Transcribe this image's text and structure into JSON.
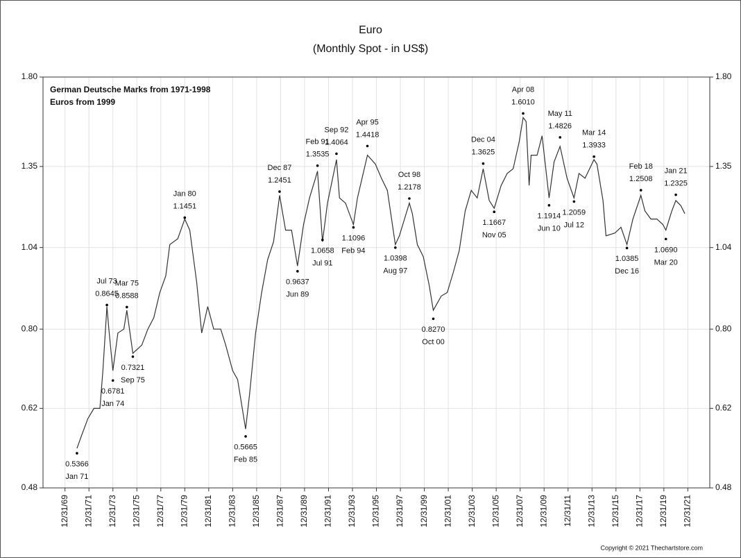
{
  "chart_data": {
    "type": "line",
    "title": "Euro",
    "subtitle": "(Monthly Spot - in US$)",
    "notes": [
      "German Deutsche Marks from 1971-1998",
      "Euros from 1999"
    ],
    "copyright": "Copyright © 2021 Thechartstore.com",
    "log_scale": true,
    "grid": true,
    "color": "#333333",
    "ylim": [
      0.48,
      1.8
    ],
    "yticks": [
      0.48,
      0.62,
      {
        "value": 0.8,
        "label": "0.80"
      },
      1.04,
      1.35,
      {
        "value": 1.8,
        "label": "1.80"
      }
    ],
    "xlim": [
      "1968-03",
      "2023-11"
    ],
    "xticks": [
      {
        "value": "1969-12-31",
        "label": "12/31/69"
      },
      {
        "value": "1971-12-31",
        "label": "12/31/71"
      },
      {
        "value": "1973-12-31",
        "label": "12/31/73"
      },
      {
        "value": "1975-12-31",
        "label": "12/31/75"
      },
      {
        "value": "1977-12-31",
        "label": "12/31/77"
      },
      {
        "value": "1979-12-31",
        "label": "12/31/79"
      },
      {
        "value": "1981-12-31",
        "label": "12/31/81"
      },
      {
        "value": "1983-12-31",
        "label": "12/31/83"
      },
      {
        "value": "1985-12-31",
        "label": "12/31/85"
      },
      {
        "value": "1987-12-31",
        "label": "12/31/87"
      },
      {
        "value": "1989-12-31",
        "label": "12/31/89"
      },
      {
        "value": "1991-12-31",
        "label": "12/31/91"
      },
      {
        "value": "1993-12-31",
        "label": "12/31/93"
      },
      {
        "value": "1995-12-31",
        "label": "12/31/95"
      },
      {
        "value": "1997-12-31",
        "label": "12/31/97"
      },
      {
        "value": "1999-12-31",
        "label": "12/31/99"
      },
      {
        "value": "2001-12-31",
        "label": "12/31/01"
      },
      {
        "value": "2003-12-31",
        "label": "12/31/03"
      },
      {
        "value": "2005-12-31",
        "label": "12/31/05"
      },
      {
        "value": "2007-12-31",
        "label": "12/31/07"
      },
      {
        "value": "2009-12-31",
        "label": "12/31/09"
      },
      {
        "value": "2011-12-31",
        "label": "12/31/11"
      },
      {
        "value": "2013-12-31",
        "label": "12/31/13"
      },
      {
        "value": "2015-12-31",
        "label": "12/31/15"
      },
      {
        "value": "2017-12-31",
        "label": "12/31/17"
      },
      {
        "value": "2019-12-31",
        "label": "12/31/19"
      },
      {
        "value": "2021-12-31",
        "label": "12/31/21"
      }
    ],
    "x": [
      "1971-01",
      "1971-06",
      "1971-12",
      "1972-06",
      "1972-12",
      "1973-03",
      "1973-07",
      "1973-09",
      "1974-01",
      "1974-06",
      "1974-12",
      "1975-03",
      "1975-09",
      "1976-06",
      "1976-12",
      "1977-06",
      "1977-12",
      "1978-06",
      "1978-10",
      "1979-06",
      "1980-01",
      "1980-06",
      "1981-01",
      "1981-06",
      "1981-12",
      "1982-06",
      "1983-01",
      "1983-06",
      "1984-01",
      "1984-06",
      "1985-02",
      "1985-06",
      "1985-12",
      "1986-06",
      "1986-12",
      "1987-06",
      "1987-12",
      "1988-06",
      "1988-12",
      "1989-06",
      "1989-12",
      "1990-06",
      "1990-12",
      "1991-02",
      "1991-07",
      "1991-12",
      "1992-09",
      "1992-12",
      "1993-06",
      "1994-02",
      "1994-06",
      "1995-04",
      "1995-12",
      "1996-06",
      "1996-12",
      "1997-08",
      "1997-12",
      "1998-10",
      "1999-01",
      "1999-06",
      "1999-12",
      "2000-06",
      "2000-10",
      "2001-06",
      "2001-12",
      "2002-06",
      "2002-12",
      "2003-06",
      "2003-12",
      "2004-06",
      "2004-12",
      "2005-06",
      "2005-11",
      "2006-06",
      "2006-12",
      "2007-06",
      "2007-12",
      "2008-04",
      "2008-07",
      "2008-10",
      "2008-12",
      "2009-06",
      "2009-11",
      "2010-06",
      "2010-11",
      "2011-05",
      "2011-12",
      "2012-07",
      "2012-12",
      "2013-06",
      "2014-03",
      "2014-06",
      "2014-12",
      "2015-03",
      "2015-12",
      "2016-06",
      "2016-12",
      "2017-06",
      "2018-02",
      "2018-06",
      "2018-12",
      "2019-06",
      "2019-12",
      "2020-03",
      "2020-09",
      "2021-01",
      "2021-06",
      "2021-10"
    ],
    "values": [
      0.545,
      0.57,
      0.6,
      0.62,
      0.62,
      0.7,
      0.86,
      0.8,
      0.7,
      0.79,
      0.8,
      0.85,
      0.74,
      0.76,
      0.8,
      0.83,
      0.9,
      0.95,
      1.05,
      1.07,
      1.14,
      1.1,
      0.93,
      0.79,
      0.86,
      0.8,
      0.8,
      0.76,
      0.7,
      0.68,
      0.58,
      0.65,
      0.79,
      0.9,
      1.0,
      1.06,
      1.23,
      1.1,
      1.1,
      0.98,
      1.12,
      1.22,
      1.3,
      1.33,
      1.06,
      1.2,
      1.38,
      1.22,
      1.2,
      1.12,
      1.22,
      1.4,
      1.36,
      1.3,
      1.25,
      1.05,
      1.08,
      1.2,
      1.16,
      1.05,
      1.01,
      0.92,
      0.85,
      0.89,
      0.9,
      0.96,
      1.03,
      1.17,
      1.25,
      1.22,
      1.34,
      1.21,
      1.18,
      1.27,
      1.32,
      1.34,
      1.46,
      1.58,
      1.56,
      1.27,
      1.4,
      1.4,
      1.49,
      1.22,
      1.37,
      1.44,
      1.3,
      1.22,
      1.32,
      1.3,
      1.38,
      1.36,
      1.21,
      1.08,
      1.09,
      1.11,
      1.05,
      1.14,
      1.23,
      1.17,
      1.14,
      1.14,
      1.12,
      1.1,
      1.17,
      1.21,
      1.19,
      1.16
    ],
    "annotations": [
      {
        "x": "1971-01",
        "date_label": "Jan 71",
        "value": 0.5366,
        "label": "0.5366"
      },
      {
        "x": "1973-07",
        "date_label": "Jul 73",
        "value": 0.8645,
        "label": "0.8645"
      },
      {
        "x": "1974-01",
        "date_label": "Jan 74",
        "value": 0.6781,
        "label": "0.6781"
      },
      {
        "x": "1975-03",
        "date_label": "Mar 75",
        "value": 0.8588,
        "label": "0.8588"
      },
      {
        "x": "1975-09",
        "date_label": "Sep 75",
        "value": 0.7321,
        "label": "0.7321"
      },
      {
        "x": "1980-01",
        "date_label": "Jan 80",
        "value": 1.1451,
        "label": "1.1451"
      },
      {
        "x": "1985-02",
        "date_label": "Feb 85",
        "value": 0.5665,
        "label": "0.5665"
      },
      {
        "x": "1987-12",
        "date_label": "Dec 87",
        "value": 1.2451,
        "label": "1.2451"
      },
      {
        "x": "1989-06",
        "date_label": "Jun 89",
        "value": 0.9637,
        "label": "0.9637"
      },
      {
        "x": "1991-02",
        "date_label": "Feb 91",
        "value": 1.3535,
        "label": "1.3535"
      },
      {
        "x": "1991-07",
        "date_label": "Jul 91",
        "value": 1.0658,
        "label": "1.0658"
      },
      {
        "x": "1992-09",
        "date_label": "Sep 92",
        "value": 1.4064,
        "label": "1.4064"
      },
      {
        "x": "1994-02",
        "date_label": "Feb 94",
        "value": 1.1096,
        "label": "1.1096"
      },
      {
        "x": "1995-04",
        "date_label": "Apr 95",
        "value": 1.4418,
        "label": "1.4418"
      },
      {
        "x": "1997-08",
        "date_label": "Aug 97",
        "value": 1.0398,
        "label": "1.0398"
      },
      {
        "x": "1998-10",
        "date_label": "Oct 98",
        "value": 1.2178,
        "label": "1.2178"
      },
      {
        "x": "2000-10",
        "date_label": "Oct 00",
        "value": 0.827,
        "label": "0.8270"
      },
      {
        "x": "2004-12",
        "date_label": "Dec 04",
        "value": 1.3625,
        "label": "1.3625"
      },
      {
        "x": "2005-11",
        "date_label": "Nov 05",
        "value": 1.1667,
        "label": "1.1667"
      },
      {
        "x": "2008-04",
        "date_label": "Apr 08",
        "value": 1.601,
        "label": "1.6010"
      },
      {
        "x": "2010-06",
        "date_label": "Jun 10",
        "value": 1.1914,
        "label": "1.1914"
      },
      {
        "x": "2011-05",
        "date_label": "May 11",
        "value": 1.4826,
        "label": "1.4826"
      },
      {
        "x": "2012-07",
        "date_label": "Jul 12",
        "value": 1.2059,
        "label": "1.2059"
      },
      {
        "x": "2014-03",
        "date_label": "Mar 14",
        "value": 1.3933,
        "label": "1.3933"
      },
      {
        "x": "2016-12",
        "date_label": "Dec 16",
        "value": 1.0385,
        "label": "1.0385"
      },
      {
        "x": "2018-02",
        "date_label": "Feb 18",
        "value": 1.2508,
        "label": "1.2508"
      },
      {
        "x": "2020-03",
        "date_label": "Mar 20",
        "value": 1.069,
        "label": "1.0690"
      },
      {
        "x": "2021-01",
        "date_label": "Jan 21",
        "value": 1.2325,
        "label": "1.2325"
      }
    ]
  }
}
